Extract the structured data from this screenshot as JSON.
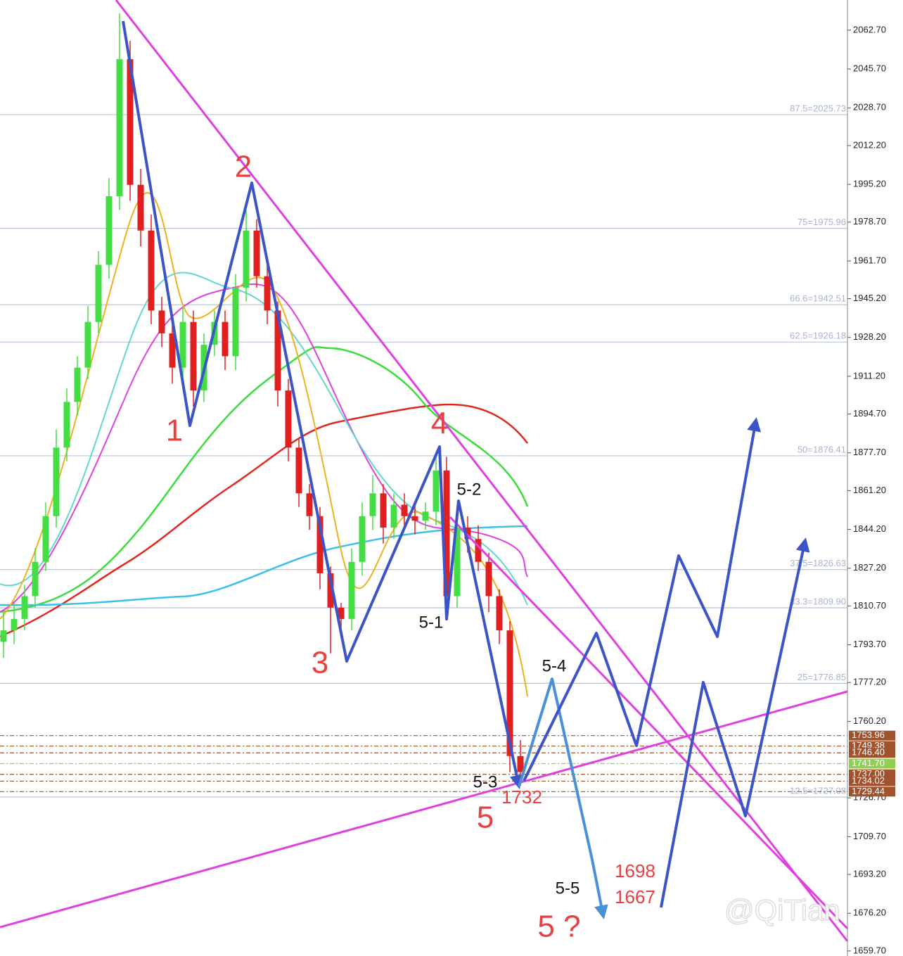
{
  "chart_data": {
    "type": "candlestick",
    "ylim": [
      1657.5,
      2075.9
    ],
    "yticks": [
      {
        "value": 2062.7,
        "label": "2062.70"
      },
      {
        "value": 2045.7,
        "label": "2045.70"
      },
      {
        "value": 2028.7,
        "label": "2028.70"
      },
      {
        "value": 2012.2,
        "label": "2012.20"
      },
      {
        "value": 1995.2,
        "label": "1995.20"
      },
      {
        "value": 1978.7,
        "label": "1978.70"
      },
      {
        "value": 1961.7,
        "label": "1961.70"
      },
      {
        "value": 1945.2,
        "label": "1945.20"
      },
      {
        "value": 1928.2,
        "label": "1928.20"
      },
      {
        "value": 1911.2,
        "label": "1911.20"
      },
      {
        "value": 1894.7,
        "label": "1894.70"
      },
      {
        "value": 1877.7,
        "label": "1877.70"
      },
      {
        "value": 1861.2,
        "label": "1861.20"
      },
      {
        "value": 1844.2,
        "label": "1844.20"
      },
      {
        "value": 1827.2,
        "label": "1827.20"
      },
      {
        "value": 1810.7,
        "label": "1810.70"
      },
      {
        "value": 1793.7,
        "label": "1793.70"
      },
      {
        "value": 1777.2,
        "label": "1777.20"
      },
      {
        "value": 1760.2,
        "label": "1760.20"
      },
      {
        "value": 1726.7,
        "label": "1726.70"
      },
      {
        "value": 1709.7,
        "label": "1709.70"
      },
      {
        "value": 1693.2,
        "label": "1693.20"
      },
      {
        "value": 1676.2,
        "label": "1676.20"
      },
      {
        "value": 1659.7,
        "label": "1659.70"
      }
    ],
    "open": [
      1795,
      1800,
      1805,
      1815,
      1830,
      1850,
      1880,
      1900,
      1915,
      1935,
      1960,
      1990,
      2050,
      1995,
      1975,
      1940,
      1930,
      1915,
      1935,
      1905,
      1925,
      1935,
      1920,
      1950,
      1975,
      1955,
      1940,
      1905,
      1880,
      1860,
      1850,
      1825,
      1810,
      1805,
      1830,
      1850,
      1860,
      1845,
      1855,
      1850,
      1848,
      1852,
      1870,
      1815,
      1845,
      1840,
      1830,
      1815,
      1800,
      1745
    ],
    "high": [
      1808,
      1812,
      1820,
      1836,
      1856,
      1888,
      1906,
      1920,
      1942,
      1966,
      1998,
      2070,
      2058,
      2002,
      1982,
      1946,
      1936,
      1942,
      1940,
      1930,
      1940,
      1940,
      1956,
      1984,
      1980,
      1960,
      1944,
      1910,
      1884,
      1864,
      1854,
      1828,
      1812,
      1836,
      1856,
      1868,
      1864,
      1860,
      1860,
      1856,
      1856,
      1878,
      1876,
      1850,
      1850,
      1846,
      1834,
      1818,
      1804,
      1752
    ],
    "low": [
      1788,
      1794,
      1800,
      1810,
      1826,
      1845,
      1874,
      1894,
      1910,
      1930,
      1954,
      1984,
      1988,
      1968,
      1934,
      1924,
      1908,
      1910,
      1898,
      1900,
      1920,
      1914,
      1914,
      1944,
      1950,
      1934,
      1898,
      1874,
      1854,
      1844,
      1818,
      1790,
      1800,
      1800,
      1824,
      1844,
      1838,
      1840,
      1846,
      1842,
      1844,
      1846,
      1808,
      1810,
      1834,
      1826,
      1808,
      1794,
      1738,
      1732
    ],
    "close": [
      1800,
      1805,
      1815,
      1830,
      1850,
      1880,
      1900,
      1915,
      1935,
      1960,
      1990,
      2050,
      1995,
      1975,
      1940,
      1930,
      1915,
      1935,
      1905,
      1925,
      1935,
      1920,
      1950,
      1975,
      1955,
      1940,
      1905,
      1880,
      1860,
      1850,
      1825,
      1810,
      1805,
      1830,
      1850,
      1860,
      1845,
      1855,
      1850,
      1848,
      1852,
      1870,
      1815,
      1845,
      1840,
      1830,
      1815,
      1800,
      1745,
      1738
    ],
    "up_color": "#44dd44",
    "down_color": "#e02020",
    "fib_levels": [
      {
        "value": 2025.73,
        "label": "87.5=2025.73"
      },
      {
        "value": 1975.96,
        "label": "75=1975.96"
      },
      {
        "value": 1942.51,
        "label": "66.6=1942.51"
      },
      {
        "value": 1926.18,
        "label": "62.5=1926.18"
      },
      {
        "value": 1876.41,
        "label": "50=1876.41"
      },
      {
        "value": 1826.63,
        "label": "37.5=1826.63"
      },
      {
        "value": 1809.9,
        "label": "33.3=1809.90"
      },
      {
        "value": 1776.85,
        "label": "25=1776.85"
      },
      {
        "value": 1727.08,
        "label": "12.5=1727.08"
      }
    ],
    "price_levels": [
      {
        "value": 1753.96,
        "label": "1753.96",
        "color": "#a0522d"
      },
      {
        "value": 1749.38,
        "label": "1749.38",
        "color": "#a0522d"
      },
      {
        "value": 1746.4,
        "label": "1746.40",
        "color": "#a0522d"
      },
      {
        "value": 1737.0,
        "label": "1737.00",
        "color": "#a0522d"
      },
      {
        "value": 1734.02,
        "label": "1734.02",
        "color": "#a0522d"
      },
      {
        "value": 1729.44,
        "label": "1729.44",
        "color": "#a0522d"
      },
      {
        "value": 1741.7,
        "label": "1741.70",
        "color": "#8fd14f"
      }
    ],
    "wave_labels": [
      "1",
      "2",
      "3",
      "4",
      "5",
      "5 ?"
    ],
    "sub_wave_labels": [
      "5-1",
      "5-2",
      "5-3",
      "5-4",
      "5-5"
    ],
    "price_notes": [
      1732,
      1698,
      1667
    ],
    "watermark": "@QiTian"
  }
}
